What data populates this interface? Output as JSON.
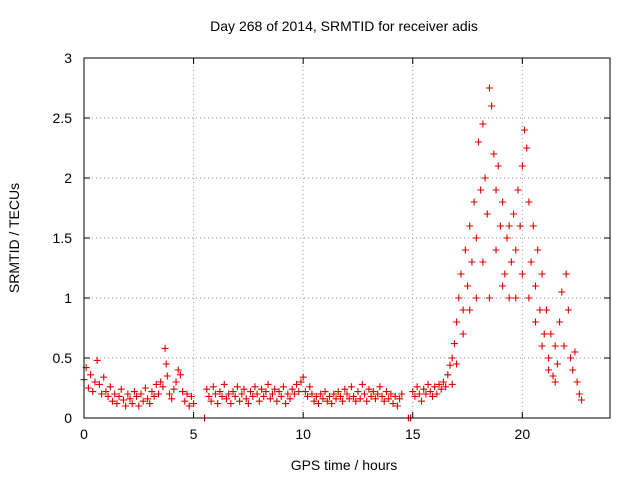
{
  "chart_data": {
    "type": "scatter",
    "title": "Day 268 of 2014, SRMTID for receiver adis",
    "xlabel": "GPS time / hours",
    "ylabel": "SRMTID / TECUs",
    "xlim": [
      0,
      24
    ],
    "ylim": [
      0,
      3
    ],
    "xticks": [
      0,
      5,
      10,
      15,
      20
    ],
    "yticks": [
      0,
      0.5,
      1,
      1.5,
      2,
      2.5,
      3
    ],
    "xtick_labels": [
      "0",
      "5",
      "10",
      "15",
      "20"
    ],
    "ytick_labels": [
      "0",
      "0.5",
      "1",
      "1.5",
      "2",
      "2.5",
      "3"
    ],
    "grid": true,
    "marker": "+",
    "series": [
      {
        "name": "adis",
        "color": "#dd0000",
        "points": [
          [
            0.0,
            0.32
          ],
          [
            0.1,
            0.42
          ],
          [
            0.2,
            0.25
          ],
          [
            0.3,
            0.36
          ],
          [
            0.4,
            0.22
          ],
          [
            0.5,
            0.3
          ],
          [
            0.6,
            0.48
          ],
          [
            0.7,
            0.28
          ],
          [
            0.8,
            0.2
          ],
          [
            0.9,
            0.34
          ],
          [
            1.0,
            0.22
          ],
          [
            1.1,
            0.18
          ],
          [
            1.2,
            0.26
          ],
          [
            1.3,
            0.14
          ],
          [
            1.4,
            0.2
          ],
          [
            1.5,
            0.12
          ],
          [
            1.6,
            0.18
          ],
          [
            1.7,
            0.24
          ],
          [
            1.8,
            0.15
          ],
          [
            1.9,
            0.1
          ],
          [
            2.0,
            0.2
          ],
          [
            2.1,
            0.16
          ],
          [
            2.2,
            0.12
          ],
          [
            2.3,
            0.22
          ],
          [
            2.4,
            0.18
          ],
          [
            2.5,
            0.1
          ],
          [
            2.6,
            0.2
          ],
          [
            2.7,
            0.14
          ],
          [
            2.8,
            0.25
          ],
          [
            2.9,
            0.16
          ],
          [
            3.0,
            0.12
          ],
          [
            3.1,
            0.22
          ],
          [
            3.2,
            0.18
          ],
          [
            3.3,
            0.28
          ],
          [
            3.4,
            0.2
          ],
          [
            3.5,
            0.3
          ],
          [
            3.6,
            0.26
          ],
          [
            3.7,
            0.58
          ],
          [
            3.75,
            0.45
          ],
          [
            3.8,
            0.35
          ],
          [
            3.9,
            0.2
          ],
          [
            4.0,
            0.16
          ],
          [
            4.1,
            0.24
          ],
          [
            4.2,
            0.3
          ],
          [
            4.3,
            0.4
          ],
          [
            4.4,
            0.36
          ],
          [
            4.5,
            0.22
          ],
          [
            4.6,
            0.14
          ],
          [
            4.7,
            0.2
          ],
          [
            4.8,
            0.1
          ],
          [
            4.9,
            0.18
          ],
          [
            5.0,
            0.12
          ],
          [
            5.5,
            0.0
          ],
          [
            5.6,
            0.24
          ],
          [
            5.7,
            0.18
          ],
          [
            5.8,
            0.14
          ],
          [
            5.9,
            0.26
          ],
          [
            6.0,
            0.2
          ],
          [
            6.1,
            0.12
          ],
          [
            6.2,
            0.22
          ],
          [
            6.3,
            0.18
          ],
          [
            6.4,
            0.28
          ],
          [
            6.5,
            0.16
          ],
          [
            6.6,
            0.2
          ],
          [
            6.7,
            0.12
          ],
          [
            6.8,
            0.22
          ],
          [
            6.9,
            0.18
          ],
          [
            7.0,
            0.26
          ],
          [
            7.1,
            0.14
          ],
          [
            7.2,
            0.2
          ],
          [
            7.3,
            0.24
          ],
          [
            7.4,
            0.16
          ],
          [
            7.5,
            0.12
          ],
          [
            7.6,
            0.22
          ],
          [
            7.7,
            0.18
          ],
          [
            7.8,
            0.26
          ],
          [
            7.9,
            0.2
          ],
          [
            8.0,
            0.14
          ],
          [
            8.1,
            0.24
          ],
          [
            8.2,
            0.18
          ],
          [
            8.3,
            0.22
          ],
          [
            8.4,
            0.28
          ],
          [
            8.5,
            0.16
          ],
          [
            8.6,
            0.2
          ],
          [
            8.7,
            0.24
          ],
          [
            8.8,
            0.14
          ],
          [
            8.9,
            0.22
          ],
          [
            9.0,
            0.18
          ],
          [
            9.1,
            0.26
          ],
          [
            9.2,
            0.12
          ],
          [
            9.3,
            0.2
          ],
          [
            9.4,
            0.16
          ],
          [
            9.5,
            0.24
          ],
          [
            9.6,
            0.2
          ],
          [
            9.7,
            0.28
          ],
          [
            9.8,
            0.22
          ],
          [
            9.9,
            0.3
          ],
          [
            10.0,
            0.34
          ],
          [
            10.1,
            0.22
          ],
          [
            10.2,
            0.18
          ],
          [
            10.3,
            0.26
          ],
          [
            10.4,
            0.2
          ],
          [
            10.5,
            0.14
          ],
          [
            10.6,
            0.18
          ],
          [
            10.7,
            0.12
          ],
          [
            10.8,
            0.2
          ],
          [
            10.9,
            0.16
          ],
          [
            11.0,
            0.22
          ],
          [
            11.1,
            0.14
          ],
          [
            11.2,
            0.18
          ],
          [
            11.3,
            0.12
          ],
          [
            11.4,
            0.2
          ],
          [
            11.5,
            0.16
          ],
          [
            11.6,
            0.22
          ],
          [
            11.7,
            0.18
          ],
          [
            11.8,
            0.14
          ],
          [
            11.9,
            0.24
          ],
          [
            12.0,
            0.2
          ],
          [
            12.1,
            0.16
          ],
          [
            12.2,
            0.26
          ],
          [
            12.3,
            0.18
          ],
          [
            12.4,
            0.14
          ],
          [
            12.5,
            0.22
          ],
          [
            12.6,
            0.16
          ],
          [
            12.7,
            0.28
          ],
          [
            12.8,
            0.2
          ],
          [
            12.9,
            0.14
          ],
          [
            13.0,
            0.24
          ],
          [
            13.1,
            0.18
          ],
          [
            13.2,
            0.22
          ],
          [
            13.3,
            0.16
          ],
          [
            13.4,
            0.2
          ],
          [
            13.5,
            0.26
          ],
          [
            13.6,
            0.18
          ],
          [
            13.7,
            0.14
          ],
          [
            13.8,
            0.22
          ],
          [
            13.9,
            0.16
          ],
          [
            14.0,
            0.2
          ],
          [
            14.1,
            0.12
          ],
          [
            14.2,
            0.18
          ],
          [
            14.3,
            0.1
          ],
          [
            14.4,
            0.16
          ],
          [
            14.5,
            0.2
          ],
          [
            14.8,
            0.0
          ],
          [
            14.9,
            0.0
          ],
          [
            15.0,
            0.22
          ],
          [
            15.1,
            0.18
          ],
          [
            15.2,
            0.26
          ],
          [
            15.3,
            0.2
          ],
          [
            15.4,
            0.14
          ],
          [
            15.5,
            0.24
          ],
          [
            15.6,
            0.2
          ],
          [
            15.7,
            0.28
          ],
          [
            15.8,
            0.22
          ],
          [
            15.9,
            0.18
          ],
          [
            16.0,
            0.26
          ],
          [
            16.1,
            0.2
          ],
          [
            16.2,
            0.28
          ],
          [
            16.3,
            0.24
          ],
          [
            16.4,
            0.3
          ],
          [
            16.5,
            0.26
          ],
          [
            16.6,
            0.36
          ],
          [
            16.7,
            0.44
          ],
          [
            16.8,
            0.5
          ],
          [
            16.9,
            0.62
          ],
          [
            17.0,
            0.8
          ],
          [
            17.1,
            1.0
          ],
          [
            17.2,
            1.2
          ],
          [
            17.3,
            0.9
          ],
          [
            17.4,
            1.4
          ],
          [
            17.5,
            1.1
          ],
          [
            17.6,
            1.6
          ],
          [
            17.7,
            1.3
          ],
          [
            17.8,
            1.8
          ],
          [
            17.9,
            1.5
          ],
          [
            18.0,
            2.3
          ],
          [
            18.1,
            1.9
          ],
          [
            18.2,
            2.45
          ],
          [
            18.3,
            2.0
          ],
          [
            18.4,
            1.7
          ],
          [
            18.5,
            2.75
          ],
          [
            18.6,
            2.6
          ],
          [
            18.7,
            2.2
          ],
          [
            18.8,
            1.9
          ],
          [
            18.9,
            2.1
          ],
          [
            19.0,
            1.6
          ],
          [
            19.1,
            1.8
          ],
          [
            19.2,
            1.2
          ],
          [
            19.3,
            1.5
          ],
          [
            19.4,
            1.0
          ],
          [
            19.5,
            1.3
          ],
          [
            19.6,
            1.7
          ],
          [
            19.7,
            1.4
          ],
          [
            19.8,
            1.9
          ],
          [
            19.9,
            1.6
          ],
          [
            20.0,
            2.1
          ],
          [
            20.1,
            2.4
          ],
          [
            20.2,
            2.25
          ],
          [
            20.3,
            1.8
          ],
          [
            20.4,
            1.3
          ],
          [
            20.5,
            1.6
          ],
          [
            20.6,
            1.1
          ],
          [
            20.7,
            1.4
          ],
          [
            20.8,
            0.9
          ],
          [
            20.9,
            1.2
          ],
          [
            21.0,
            0.7
          ],
          [
            21.1,
            0.9
          ],
          [
            21.2,
            0.5
          ],
          [
            21.3,
            0.7
          ],
          [
            21.4,
            0.35
          ],
          [
            21.5,
            0.6
          ],
          [
            21.6,
            0.45
          ],
          [
            21.7,
            0.8
          ],
          [
            21.8,
            1.05
          ],
          [
            21.9,
            0.6
          ],
          [
            22.0,
            1.2
          ],
          [
            22.1,
            0.9
          ],
          [
            22.2,
            0.5
          ],
          [
            22.3,
            0.4
          ],
          [
            22.4,
            0.55
          ],
          [
            22.5,
            0.3
          ],
          [
            22.6,
            0.2
          ],
          [
            22.7,
            0.15
          ],
          [
            16.8,
            0.28
          ],
          [
            17.0,
            0.45
          ],
          [
            17.3,
            0.7
          ],
          [
            17.6,
            0.9
          ],
          [
            17.9,
            1.0
          ],
          [
            18.2,
            1.3
          ],
          [
            18.5,
            1.0
          ],
          [
            18.8,
            1.4
          ],
          [
            19.1,
            1.1
          ],
          [
            19.4,
            1.6
          ],
          [
            19.7,
            1.0
          ],
          [
            20.0,
            1.2
          ],
          [
            20.3,
            1.0
          ],
          [
            20.6,
            0.8
          ],
          [
            20.9,
            0.6
          ],
          [
            21.2,
            0.4
          ],
          [
            21.5,
            0.3
          ]
        ]
      }
    ]
  }
}
